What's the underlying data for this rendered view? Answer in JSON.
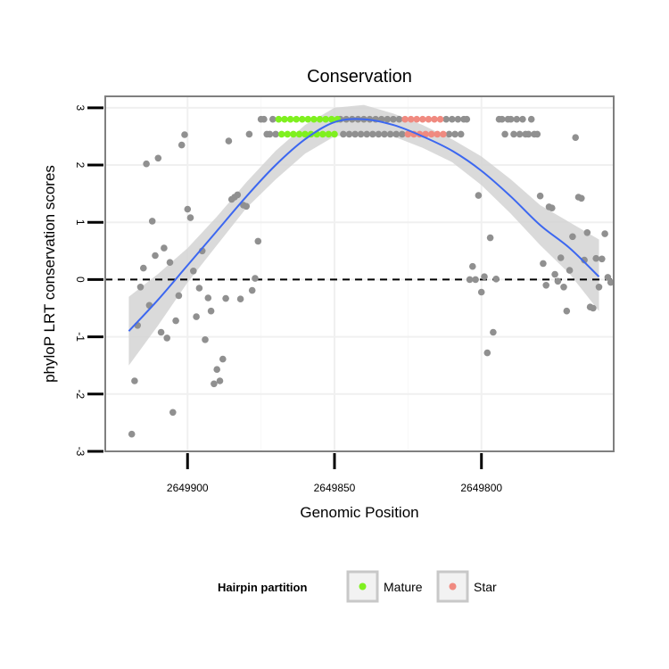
{
  "chart_data": {
    "type": "scatter",
    "title": "Conservation",
    "xlabel": "Genomic Position",
    "ylabel": "phyloP LRT conservation scores",
    "x_reversed": true,
    "xlim": [
      2649928,
      2649755
    ],
    "ylim": [
      -3,
      3.2
    ],
    "x_ticks": [
      2649900,
      2649850,
      2649800
    ],
    "x_tick_labels": [
      "2649900",
      "2649850",
      "2649800"
    ],
    "y_ticks": [
      -3,
      -2,
      -1,
      0,
      1,
      2,
      3
    ],
    "y_tick_labels": [
      "-3",
      "-2",
      "-1",
      "0",
      "1",
      "2",
      "3"
    ],
    "reference_line": {
      "y": 0,
      "style": "dashed"
    },
    "legend": {
      "title": "Hairpin partition",
      "placement": "bottom",
      "entries": [
        {
          "label": "Mature",
          "color": "#7ff01f"
        },
        {
          "label": "Star",
          "color": "#f08a80"
        }
      ]
    },
    "colors": {
      "Unassigned": "#909090",
      "Mature": "#7ff01f",
      "Star": "#f08a80",
      "smooth": "#3c67f0",
      "band": "#d3d3d3"
    },
    "smooth": {
      "x": [
        2649920,
        2649910,
        2649900,
        2649890,
        2649880,
        2649870,
        2649860,
        2649850,
        2649840,
        2649830,
        2649820,
        2649810,
        2649800,
        2649790,
        2649780,
        2649770,
        2649760
      ],
      "y": [
        -0.9,
        -0.35,
        0.25,
        0.85,
        1.45,
        2.0,
        2.45,
        2.75,
        2.8,
        2.7,
        2.5,
        2.25,
        1.9,
        1.45,
        0.95,
        0.55,
        0.05
      ],
      "lower": [
        -1.5,
        -0.8,
        -0.05,
        0.6,
        1.25,
        1.75,
        2.2,
        2.5,
        2.55,
        2.5,
        2.3,
        2.05,
        1.65,
        1.15,
        0.6,
        0.1,
        -0.55
      ],
      "upper": [
        -0.3,
        0.1,
        0.55,
        1.1,
        1.7,
        2.25,
        2.7,
        3.0,
        3.05,
        2.9,
        2.7,
        2.45,
        2.15,
        1.75,
        1.3,
        1.0,
        0.7
      ]
    },
    "series": [
      {
        "name": "Unassigned",
        "points": [
          [
            2649919,
            -2.7
          ],
          [
            2649918,
            -1.77
          ],
          [
            2649917,
            -0.8
          ],
          [
            2649916,
            -0.13
          ],
          [
            2649915,
            0.2
          ],
          [
            2649914,
            2.02
          ],
          [
            2649913,
            -0.45
          ],
          [
            2649912,
            1.02
          ],
          [
            2649911,
            0.42
          ],
          [
            2649910,
            2.12
          ],
          [
            2649909,
            -0.92
          ],
          [
            2649908,
            0.55
          ],
          [
            2649907,
            -1.02
          ],
          [
            2649906,
            0.3
          ],
          [
            2649905,
            -2.32
          ],
          [
            2649904,
            -0.72
          ],
          [
            2649903,
            -0.28
          ],
          [
            2649902,
            2.35
          ],
          [
            2649901,
            2.53
          ],
          [
            2649900,
            1.23
          ],
          [
            2649899,
            1.08
          ],
          [
            2649898,
            0.15
          ],
          [
            2649897,
            -0.65
          ],
          [
            2649896,
            -0.15
          ],
          [
            2649895,
            0.5
          ],
          [
            2649894,
            -1.05
          ],
          [
            2649893,
            -0.32
          ],
          [
            2649892,
            -0.55
          ],
          [
            2649891,
            -1.82
          ],
          [
            2649890,
            -1.57
          ],
          [
            2649889,
            -1.77
          ],
          [
            2649888,
            -1.39
          ],
          [
            2649887,
            -0.33
          ],
          [
            2649886,
            2.42
          ],
          [
            2649885,
            1.4
          ],
          [
            2649884,
            1.44
          ],
          [
            2649883,
            1.48
          ],
          [
            2649882,
            -0.34
          ],
          [
            2649881,
            1.3
          ],
          [
            2649880,
            1.28
          ],
          [
            2649879,
            2.54
          ],
          [
            2649878,
            -0.19
          ],
          [
            2649877,
            0.02
          ],
          [
            2649876,
            0.67
          ],
          [
            2649875,
            2.8
          ],
          [
            2649874,
            2.8
          ],
          [
            2649873,
            2.54
          ],
          [
            2649872,
            2.54
          ],
          [
            2649871,
            2.8
          ],
          [
            2649870,
            2.54
          ],
          [
            2649848,
            2.8
          ],
          [
            2649847,
            2.54
          ],
          [
            2649846,
            2.8
          ],
          [
            2649845,
            2.54
          ],
          [
            2649844,
            2.8
          ],
          [
            2649843,
            2.54
          ],
          [
            2649842,
            2.8
          ],
          [
            2649841,
            2.54
          ],
          [
            2649840,
            2.8
          ],
          [
            2649839,
            2.54
          ],
          [
            2649838,
            2.8
          ],
          [
            2649837,
            2.54
          ],
          [
            2649836,
            2.8
          ],
          [
            2649835,
            2.54
          ],
          [
            2649834,
            2.8
          ],
          [
            2649833,
            2.54
          ],
          [
            2649832,
            2.8
          ],
          [
            2649831,
            2.54
          ],
          [
            2649830,
            2.8
          ],
          [
            2649829,
            2.54
          ],
          [
            2649828,
            2.8
          ],
          [
            2649827,
            2.54
          ],
          [
            2649812,
            2.8
          ],
          [
            2649811,
            2.54
          ],
          [
            2649810,
            2.8
          ],
          [
            2649809,
            2.54
          ],
          [
            2649808,
            2.8
          ],
          [
            2649807,
            2.54
          ],
          [
            2649806,
            2.8
          ],
          [
            2649805,
            2.8
          ],
          [
            2649804,
            0.0
          ],
          [
            2649803,
            0.23
          ],
          [
            2649802,
            0.0
          ],
          [
            2649801,
            1.47
          ],
          [
            2649800,
            -0.22
          ],
          [
            2649799,
            0.05
          ],
          [
            2649798,
            -1.28
          ],
          [
            2649797,
            0.73
          ],
          [
            2649796,
            -0.92
          ],
          [
            2649795,
            0.01
          ],
          [
            2649794,
            2.8
          ],
          [
            2649793,
            2.8
          ],
          [
            2649792,
            2.54
          ],
          [
            2649791,
            2.8
          ],
          [
            2649790,
            2.8
          ],
          [
            2649789,
            2.54
          ],
          [
            2649788,
            2.8
          ],
          [
            2649787,
            2.54
          ],
          [
            2649786,
            2.8
          ],
          [
            2649785,
            2.54
          ],
          [
            2649784,
            2.54
          ],
          [
            2649783,
            2.8
          ],
          [
            2649782,
            2.54
          ],
          [
            2649781,
            2.54
          ],
          [
            2649780,
            1.46
          ],
          [
            2649779,
            0.28
          ],
          [
            2649778,
            -0.1
          ],
          [
            2649777,
            1.27
          ],
          [
            2649776,
            1.25
          ],
          [
            2649775,
            0.09
          ],
          [
            2649774,
            -0.03
          ],
          [
            2649773,
            0.38
          ],
          [
            2649772,
            -0.13
          ],
          [
            2649771,
            -0.55
          ],
          [
            2649770,
            0.16
          ],
          [
            2649769,
            0.75
          ],
          [
            2649768,
            2.48
          ],
          [
            2649767,
            1.44
          ],
          [
            2649766,
            1.42
          ],
          [
            2649765,
            0.34
          ],
          [
            2649764,
            0.82
          ],
          [
            2649763,
            -0.48
          ],
          [
            2649762,
            -0.5
          ],
          [
            2649761,
            0.37
          ],
          [
            2649760,
            -0.13
          ],
          [
            2649759,
            0.36
          ],
          [
            2649758,
            0.8
          ],
          [
            2649757,
            0.04
          ],
          [
            2649756,
            -0.05
          ]
        ]
      },
      {
        "name": "Mature",
        "points": [
          [
            2649869,
            2.8
          ],
          [
            2649868,
            2.54
          ],
          [
            2649867,
            2.8
          ],
          [
            2649866,
            2.54
          ],
          [
            2649865,
            2.8
          ],
          [
            2649864,
            2.54
          ],
          [
            2649863,
            2.8
          ],
          [
            2649862,
            2.54
          ],
          [
            2649861,
            2.8
          ],
          [
            2649860,
            2.54
          ],
          [
            2649859,
            2.8
          ],
          [
            2649858,
            2.54
          ],
          [
            2649857,
            2.8
          ],
          [
            2649856,
            2.54
          ],
          [
            2649855,
            2.8
          ],
          [
            2649854,
            2.54
          ],
          [
            2649853,
            2.8
          ],
          [
            2649852,
            2.54
          ],
          [
            2649851,
            2.8
          ],
          [
            2649850,
            2.54
          ],
          [
            2649849,
            2.8
          ]
        ]
      },
      {
        "name": "Star",
        "points": [
          [
            2649826,
            2.8
          ],
          [
            2649825,
            2.54
          ],
          [
            2649824,
            2.8
          ],
          [
            2649823,
            2.54
          ],
          [
            2649822,
            2.8
          ],
          [
            2649821,
            2.54
          ],
          [
            2649820,
            2.8
          ],
          [
            2649819,
            2.54
          ],
          [
            2649818,
            2.8
          ],
          [
            2649817,
            2.54
          ],
          [
            2649816,
            2.8
          ],
          [
            2649815,
            2.54
          ],
          [
            2649814,
            2.8
          ],
          [
            2649813,
            2.54
          ]
        ]
      }
    ]
  }
}
